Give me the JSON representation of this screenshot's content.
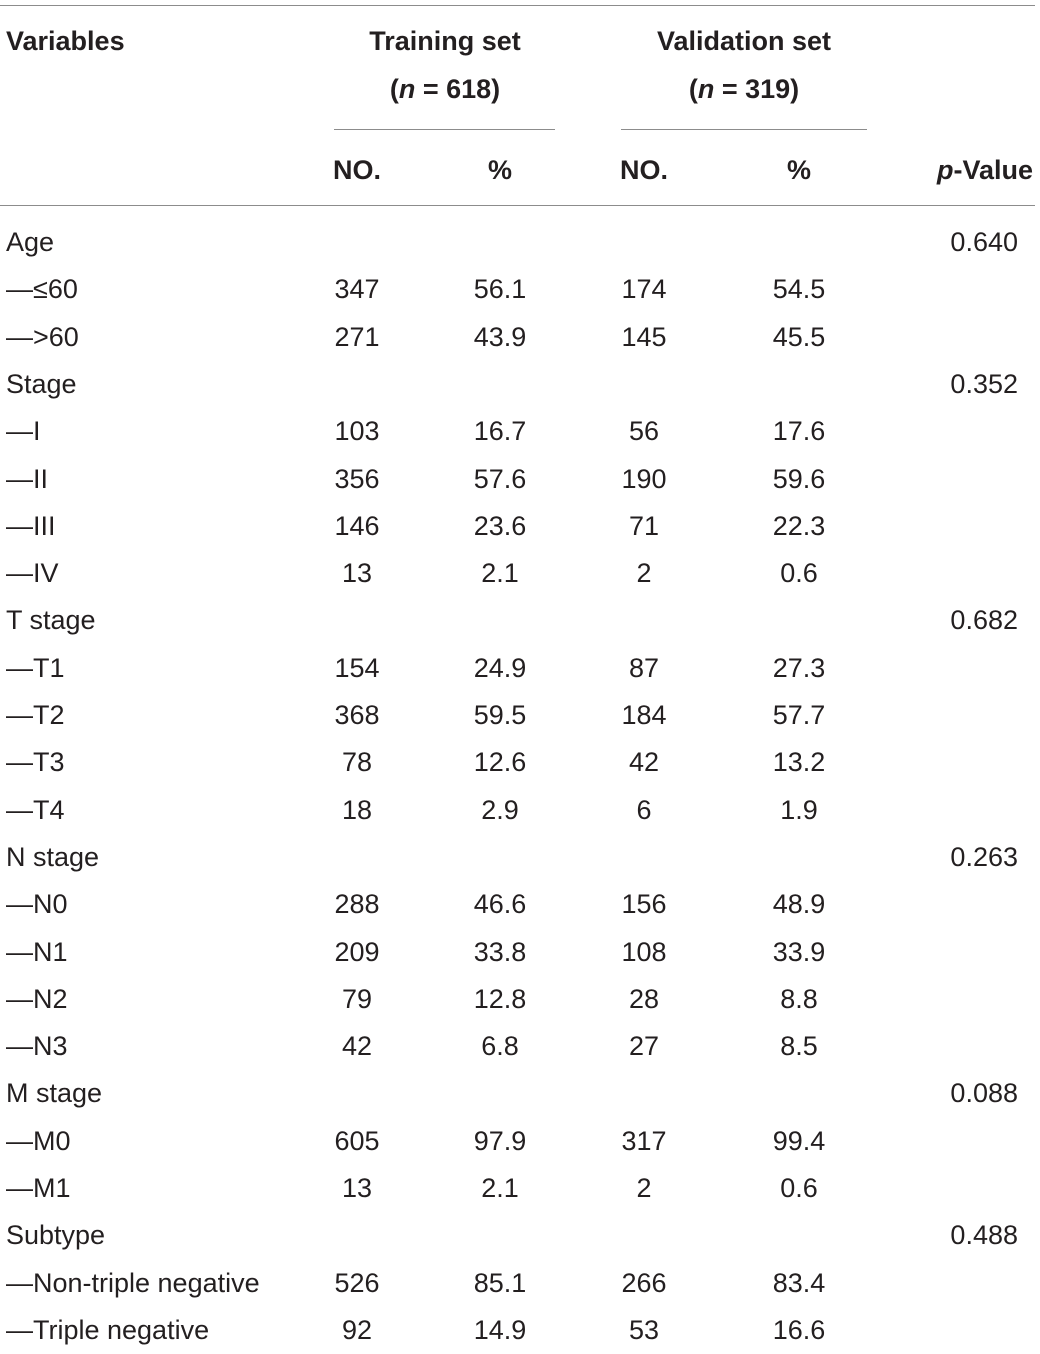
{
  "header": {
    "variables": "Variables",
    "training_title": "Training set",
    "training_n_open": "(",
    "training_n_italic": "n",
    "training_n_close": " = 618)",
    "validation_title": "Validation set",
    "validation_n_open": "(",
    "validation_n_italic": "n",
    "validation_n_close": " = 319)",
    "no_label": "NO.",
    "pct_label": "%",
    "p_italic": "p",
    "p_rest": "-Value"
  },
  "rows": [
    {
      "label": "Age",
      "p": "0.640"
    },
    {
      "label": "—≤60",
      "tr_no": "347",
      "tr_pct": "56.1",
      "va_no": "174",
      "va_pct": "54.5"
    },
    {
      "label": "—>60",
      "tr_no": "271",
      "tr_pct": "43.9",
      "va_no": "145",
      "va_pct": "45.5"
    },
    {
      "label": "Stage",
      "p": "0.352"
    },
    {
      "label": "—I",
      "tr_no": "103",
      "tr_pct": "16.7",
      "va_no": "56",
      "va_pct": "17.6"
    },
    {
      "label": "—II",
      "tr_no": "356",
      "tr_pct": "57.6",
      "va_no": "190",
      "va_pct": "59.6"
    },
    {
      "label": "—III",
      "tr_no": "146",
      "tr_pct": "23.6",
      "va_no": "71",
      "va_pct": "22.3"
    },
    {
      "label": "—IV",
      "tr_no": "13",
      "tr_pct": "2.1",
      "va_no": "2",
      "va_pct": "0.6"
    },
    {
      "label": "T stage",
      "p": "0.682"
    },
    {
      "label": "—T1",
      "tr_no": "154",
      "tr_pct": "24.9",
      "va_no": "87",
      "va_pct": "27.3"
    },
    {
      "label": "—T2",
      "tr_no": "368",
      "tr_pct": "59.5",
      "va_no": "184",
      "va_pct": "57.7"
    },
    {
      "label": "—T3",
      "tr_no": "78",
      "tr_pct": "12.6",
      "va_no": "42",
      "va_pct": "13.2"
    },
    {
      "label": "—T4",
      "tr_no": "18",
      "tr_pct": "2.9",
      "va_no": "6",
      "va_pct": "1.9"
    },
    {
      "label": "N stage",
      "p": "0.263"
    },
    {
      "label": "—N0",
      "tr_no": "288",
      "tr_pct": "46.6",
      "va_no": "156",
      "va_pct": "48.9"
    },
    {
      "label": "—N1",
      "tr_no": "209",
      "tr_pct": "33.8",
      "va_no": "108",
      "va_pct": "33.9"
    },
    {
      "label": "—N2",
      "tr_no": "79",
      "tr_pct": "12.8",
      "va_no": "28",
      "va_pct": "8.8"
    },
    {
      "label": "—N3",
      "tr_no": "42",
      "tr_pct": "6.8",
      "va_no": "27",
      "va_pct": "8.5"
    },
    {
      "label": "M stage",
      "p": "0.088"
    },
    {
      "label": "—M0",
      "tr_no": "605",
      "tr_pct": "97.9",
      "va_no": "317",
      "va_pct": "99.4"
    },
    {
      "label": "—M1",
      "tr_no": "13",
      "tr_pct": "2.1",
      "va_no": "2",
      "va_pct": "0.6"
    },
    {
      "label": "Subtype",
      "p": "0.488"
    },
    {
      "label": "—Non-triple negative",
      "tr_no": "526",
      "tr_pct": "85.1",
      "va_no": "266",
      "va_pct": "83.4"
    },
    {
      "label": "—Triple negative",
      "tr_no": "92",
      "tr_pct": "14.9",
      "va_no": "53",
      "va_pct": "16.6"
    }
  ]
}
